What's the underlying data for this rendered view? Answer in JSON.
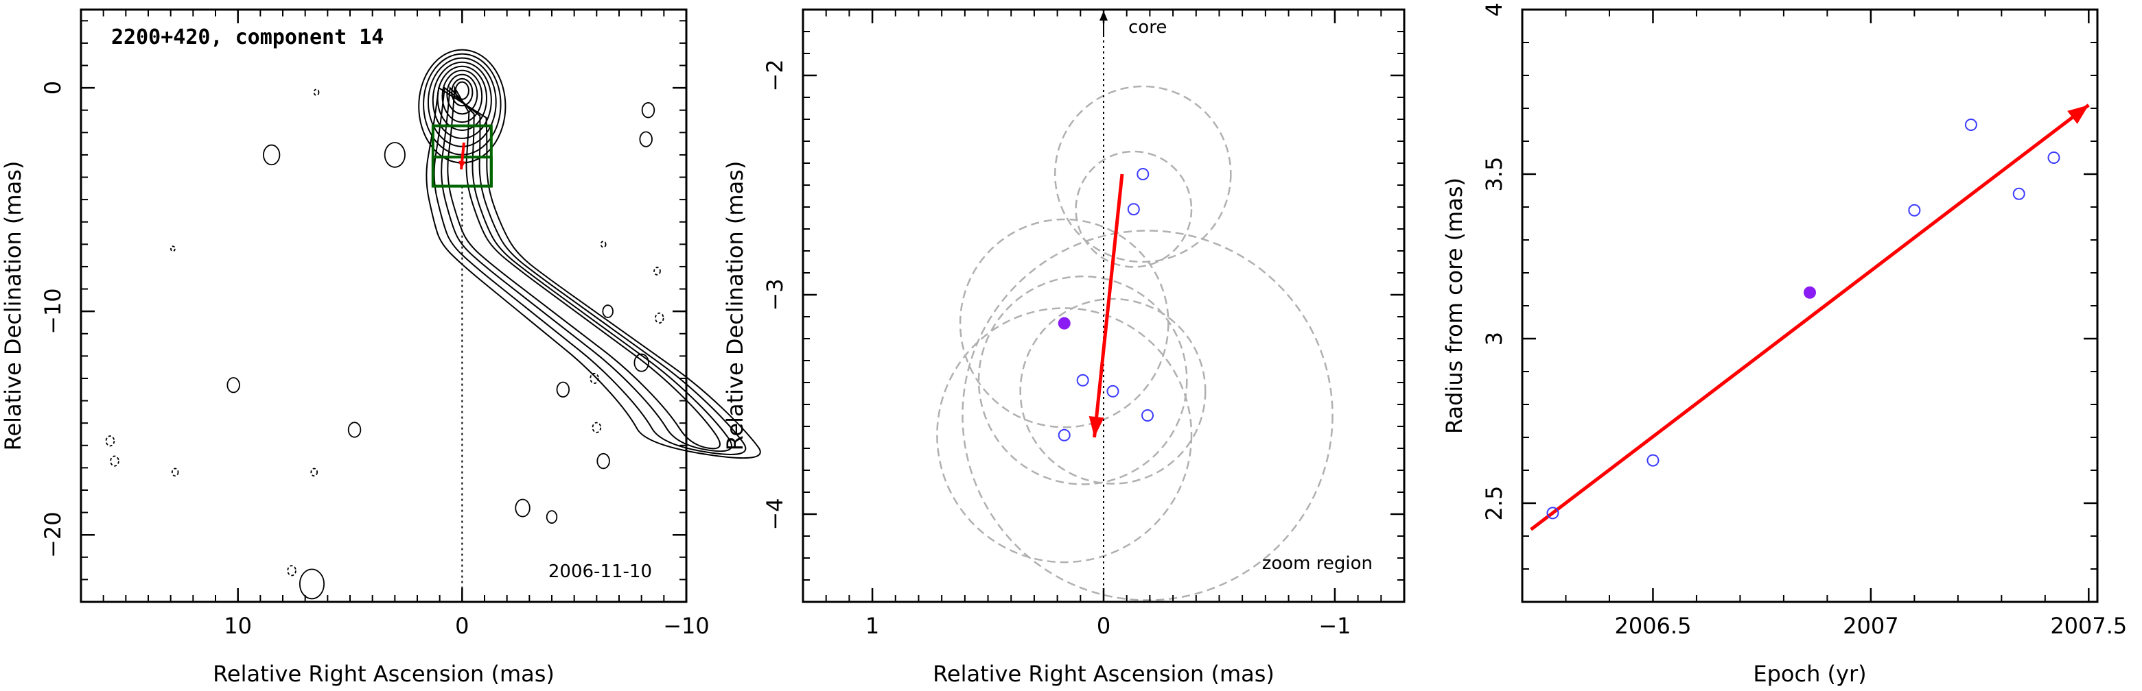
{
  "chart_data": [
    {
      "type": "contour",
      "title": "2200+420, component 14",
      "xlabel": "Relative Right Ascension (mas)",
      "ylabel": "Relative Declination (mas)",
      "xlim": [
        17,
        -10
      ],
      "ylim": [
        -23,
        3.5
      ],
      "xticks": [
        10,
        0,
        -10
      ],
      "yticks": [
        0,
        -10,
        -20
      ],
      "epoch_label": "2006-11-10",
      "core_position": [
        0,
        0
      ],
      "zoom_box": {
        "x_range": [
          1.3,
          -1.3
        ],
        "y_range": [
          -1.7,
          -4.4
        ]
      },
      "inner_box": {
        "x_range": [
          1.3,
          -1.3
        ],
        "y_range": [
          -3.1,
          -4.4
        ]
      },
      "component_motion": {
        "from": [
          -0.08,
          -2.45
        ],
        "to": [
          0.04,
          -3.65
        ]
      },
      "jet_ridge": [
        [
          0,
          0
        ],
        [
          0.1,
          -2
        ],
        [
          0.3,
          -4
        ],
        [
          -0.3,
          -6
        ],
        [
          -0.8,
          -7
        ],
        [
          -2,
          -8
        ],
        [
          -4,
          -9.5
        ],
        [
          -6,
          -11
        ],
        [
          -8,
          -12.5
        ],
        [
          -10,
          -14.5
        ],
        [
          -11,
          -16
        ]
      ]
    },
    {
      "type": "scatter",
      "xlabel": "Relative Right Ascension (mas)",
      "ylabel": "Relative Declination (mas)",
      "xlim": [
        1.3,
        -1.3
      ],
      "ylim": [
        -4.4,
        -1.7
      ],
      "xticks": [
        1,
        0,
        -1
      ],
      "yticks": [
        -2,
        -3,
        -4
      ],
      "annotations": {
        "core": "core",
        "region": "zoom region"
      },
      "points": [
        {
          "x": -0.17,
          "y": -2.45,
          "r": 0.38
        },
        {
          "x": -0.13,
          "y": -2.61,
          "r": 0.25
        },
        {
          "x": 0.17,
          "y": -3.13,
          "r": 0.45,
          "filled": true
        },
        {
          "x": 0.09,
          "y": -3.39,
          "r": 0.45
        },
        {
          "x": -0.04,
          "y": -3.44,
          "r": 0.4
        },
        {
          "x": -0.19,
          "y": -3.55,
          "r": 0.8
        },
        {
          "x": 0.17,
          "y": -3.64,
          "r": 0.55
        }
      ],
      "motion_arrow": {
        "from": [
          -0.08,
          -2.45
        ],
        "to": [
          0.04,
          -3.65
        ]
      }
    },
    {
      "type": "scatter",
      "xlabel": "Epoch (yr)",
      "ylabel": "Radius from core (mas)",
      "xlim": [
        2006.2,
        2007.52
      ],
      "ylim": [
        2.2,
        4.0
      ],
      "xticks": [
        2006.5,
        2007,
        2007.5
      ],
      "xtick_labels": [
        "2006.5",
        "2007",
        "2007.5"
      ],
      "yticks": [
        2.5,
        3,
        3.5,
        4
      ],
      "points": [
        {
          "x": 2006.27,
          "y": 2.47
        },
        {
          "x": 2006.5,
          "y": 2.63
        },
        {
          "x": 2006.86,
          "y": 3.14,
          "filled": true
        },
        {
          "x": 2007.1,
          "y": 3.39
        },
        {
          "x": 2007.23,
          "y": 3.65
        },
        {
          "x": 2007.34,
          "y": 3.44
        },
        {
          "x": 2007.42,
          "y": 3.55
        }
      ],
      "fit_line": {
        "x": [
          2006.22,
          2007.5
        ],
        "y": [
          2.42,
          3.71
        ]
      }
    }
  ],
  "colors": {
    "axis": "#000000",
    "fit": "#ff0000",
    "point": "#3b3bff",
    "filled_point": "#8a1bf2",
    "circle": "#b0b0b0",
    "box": "#006400"
  }
}
